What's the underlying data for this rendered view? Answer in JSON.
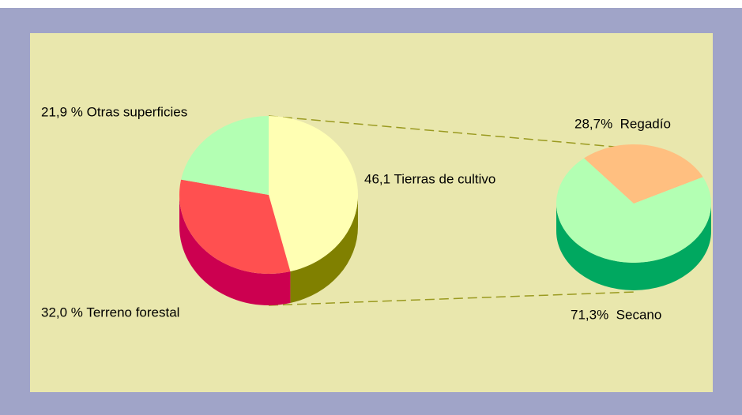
{
  "chart_data": [
    {
      "type": "pie",
      "values": [
        46.1,
        32.0,
        21.9
      ],
      "value_labels": [
        "46,1 Tierras de cultivo",
        "32,0 % Terreno forestal",
        "21,9 % Otras superficies"
      ],
      "colors": [
        "#ffffb3",
        "#ff5050",
        "#b3ffb3"
      ],
      "side_colors": [
        "#808000",
        "#cc0050",
        "#60c060"
      ]
    },
    {
      "type": "pie",
      "values": [
        28.7,
        71.3
      ],
      "value_labels": [
        "28,7%  Regadío",
        "71,3%  Secano"
      ],
      "colors": [
        "#ffbf80",
        "#b3ffb3"
      ],
      "side_colors": [
        "#d08a40",
        "#00a860"
      ]
    }
  ]
}
